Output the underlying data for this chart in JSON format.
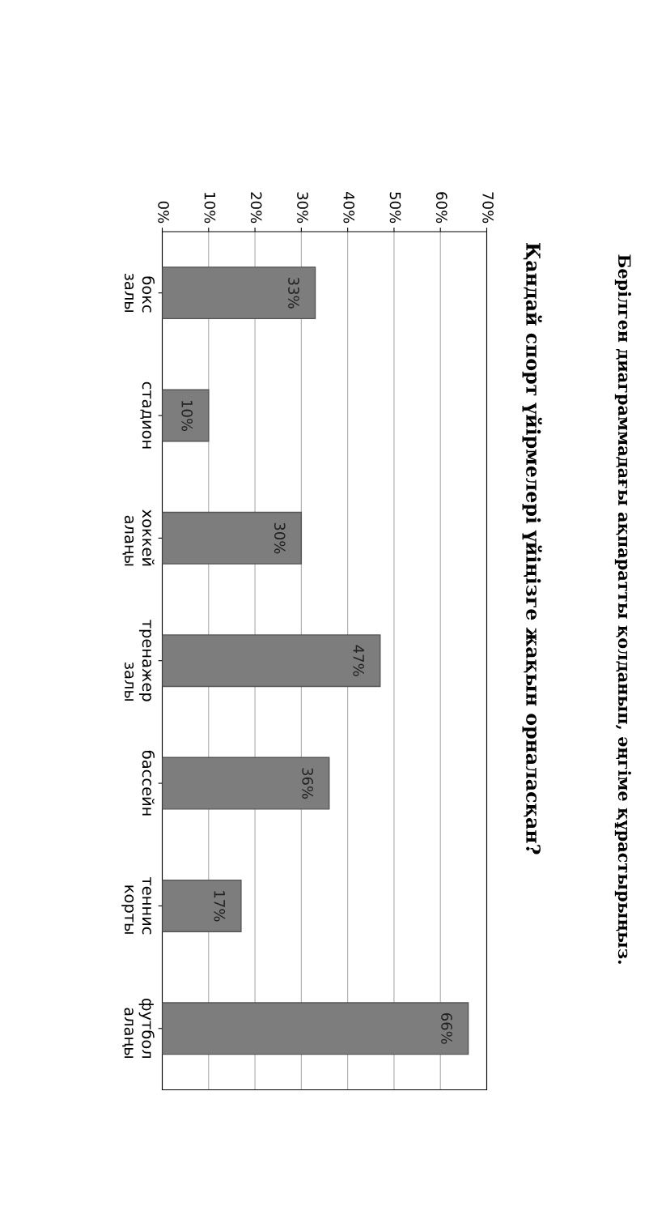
{
  "chart_data": {
    "type": "bar",
    "orientation": "horizontal",
    "title": "Қандай спорт үйірмелері үйіңізге жақын орналасқан?",
    "annotations": [
      "Берілген диаграммадағы ақпаратты қолданып, әңгіме құрастырыңыз."
    ],
    "categories": [
      "бокс залы",
      "стадион",
      "хоккей алаңы",
      "тренажер залы",
      "бассейн",
      "теннис корты",
      "футбол алаңы"
    ],
    "values": [
      33,
      10,
      30,
      47,
      36,
      17,
      66
    ],
    "color": "#7d7d7d",
    "value_labels": [
      "33%",
      "10%",
      "30%",
      "47%",
      "36%",
      "17%",
      "66%"
    ],
    "xlim": [
      0,
      70
    ],
    "xticks": [
      {
        "value": 0,
        "label": "0%"
      },
      {
        "value": 10,
        "label": "10%"
      },
      {
        "value": 20,
        "label": "20%"
      },
      {
        "value": 30,
        "label": "30%"
      },
      {
        "value": 40,
        "label": "40%"
      },
      {
        "value": 50,
        "label": "50%"
      },
      {
        "value": 60,
        "label": "60%"
      },
      {
        "value": 70,
        "label": "70%"
      }
    ],
    "grid": "x"
  }
}
